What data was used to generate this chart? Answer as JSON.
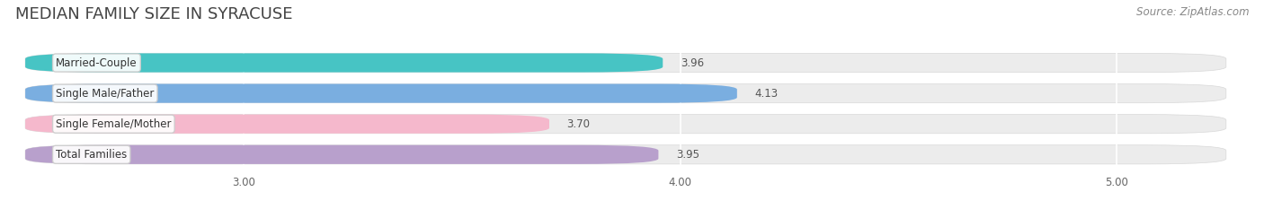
{
  "title": "MEDIAN FAMILY SIZE IN SYRACUSE",
  "source": "Source: ZipAtlas.com",
  "categories": [
    "Married-Couple",
    "Single Male/Father",
    "Single Female/Mother",
    "Total Families"
  ],
  "values": [
    3.96,
    4.13,
    3.7,
    3.95
  ],
  "bar_colors": [
    "#47c4c4",
    "#7aaee0",
    "#f5b8cc",
    "#b8a0cc"
  ],
  "xlim_min": 2.5,
  "xlim_max": 5.25,
  "xticks": [
    3.0,
    4.0,
    5.0
  ],
  "xtick_labels": [
    "3.00",
    "4.00",
    "5.00"
  ],
  "background_color": "#ffffff",
  "bar_bg_color": "#ececec",
  "title_fontsize": 13,
  "source_fontsize": 8.5,
  "label_fontsize": 8.5,
  "value_fontsize": 8.5
}
